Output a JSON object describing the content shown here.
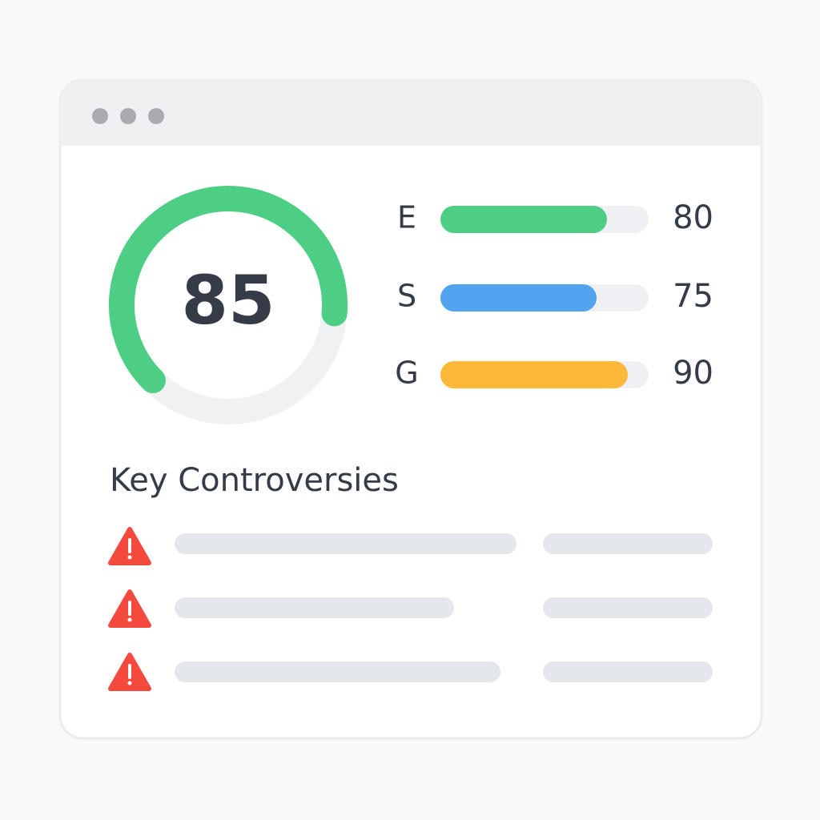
{
  "score": {
    "value": 85,
    "color": "#4cce84"
  },
  "metrics": [
    {
      "label": "E",
      "value": 80,
      "color": "#4cce84"
    },
    {
      "label": "S",
      "value": 75,
      "color": "#52a3f0"
    },
    {
      "label": "G",
      "value": 90,
      "color": "#fdb839"
    }
  ],
  "section": {
    "title": "Key Controversies"
  }
}
